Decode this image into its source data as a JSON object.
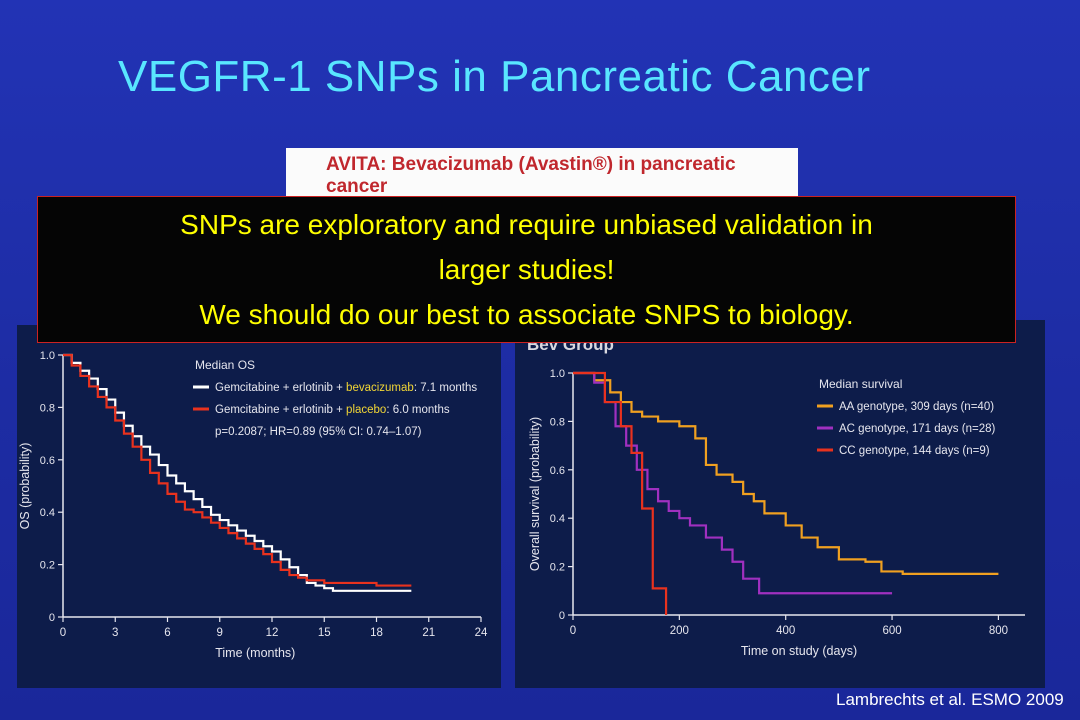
{
  "slide": {
    "title": "VEGFR-1 SNPs in Pancreatic Cancer",
    "trial_banner_line1": "AVITA: Bevacizumab (Avastin®) in pancreatic",
    "trial_banner_line2": "cancer",
    "callout_line1": "SNPs are exploratory and require unbiased validation in",
    "callout_line2": "larger studies!",
    "callout_line3": "We should do our best to associate SNPS to biology.",
    "right_panel_header": "Bev Group",
    "citation": "Lambrechts et al. ESMO 2009",
    "colors": {
      "background": "#1f2fa8",
      "title": "#59e6ff",
      "callout_text": "#ffff00",
      "callout_border": "#cc2222"
    }
  },
  "chart_data": [
    {
      "type": "line",
      "step": true,
      "xlabel": "Time (months)",
      "ylabel": "OS (probability)",
      "xlim": [
        0,
        24
      ],
      "ylim": [
        0,
        1.0
      ],
      "xticks": [
        "0",
        "3",
        "6",
        "9",
        "12",
        "15",
        "18",
        "21",
        "24"
      ],
      "yticks": [
        "0",
        "0.2",
        "0.4",
        "0.6",
        "0.8",
        "1.0"
      ],
      "legend_title": "Median OS",
      "annotation": "p=0.2087; HR=0.89 (95% CI: 0.74–1.07)",
      "series": [
        {
          "label_prefix": "Gemcitabine + erlotinib + ",
          "label_highlight": "bevacizumab",
          "label_suffix": ": 7.1 months",
          "color": "#ffffff",
          "highlight_color": "#f2d635",
          "x": [
            0,
            0.5,
            1,
            1.5,
            2,
            2.5,
            3,
            3.5,
            4,
            4.5,
            5,
            5.5,
            6,
            6.5,
            7,
            7.5,
            8,
            8.5,
            9,
            9.5,
            10,
            10.5,
            11,
            11.5,
            12,
            12.5,
            13,
            13.5,
            14,
            14.5,
            15,
            15.5,
            16,
            17,
            18,
            19,
            20
          ],
          "y": [
            1.0,
            0.97,
            0.94,
            0.91,
            0.87,
            0.83,
            0.78,
            0.73,
            0.69,
            0.65,
            0.62,
            0.58,
            0.54,
            0.51,
            0.48,
            0.45,
            0.42,
            0.39,
            0.37,
            0.35,
            0.33,
            0.31,
            0.29,
            0.27,
            0.25,
            0.22,
            0.19,
            0.16,
            0.13,
            0.12,
            0.11,
            0.1,
            0.1,
            0.1,
            0.1,
            0.1,
            0.1
          ]
        },
        {
          "label_prefix": "Gemcitabine + erlotinib + ",
          "label_highlight": "placebo",
          "label_suffix": ": 6.0 months",
          "color": "#e8321e",
          "highlight_color": "#f2d635",
          "x": [
            0,
            0.5,
            1,
            1.5,
            2,
            2.5,
            3,
            3.5,
            4,
            4.5,
            5,
            5.5,
            6,
            6.5,
            7,
            7.5,
            8,
            8.5,
            9,
            9.5,
            10,
            10.5,
            11,
            11.5,
            12,
            12.5,
            13,
            13.5,
            14,
            14.5,
            15,
            16,
            17,
            18,
            19,
            20
          ],
          "y": [
            1.0,
            0.96,
            0.92,
            0.88,
            0.84,
            0.8,
            0.75,
            0.7,
            0.65,
            0.6,
            0.55,
            0.51,
            0.47,
            0.44,
            0.41,
            0.4,
            0.38,
            0.36,
            0.34,
            0.32,
            0.3,
            0.28,
            0.26,
            0.24,
            0.21,
            0.18,
            0.16,
            0.15,
            0.14,
            0.14,
            0.13,
            0.13,
            0.13,
            0.12,
            0.12,
            0.12
          ]
        }
      ]
    },
    {
      "type": "line",
      "step": true,
      "xlabel": "Time on study (days)",
      "ylabel": "Overall survival (probability)",
      "xlim": [
        0,
        850
      ],
      "ylim": [
        0,
        1.0
      ],
      "xticks": [
        "0",
        "200",
        "400",
        "600",
        "800"
      ],
      "yticks": [
        "0",
        "0.2",
        "0.4",
        "0.6",
        "0.8",
        "1.0"
      ],
      "legend_title": "Median survival",
      "series": [
        {
          "label": "AA genotype, 309 days (n=40)",
          "color": "#f0a020",
          "x": [
            0,
            40,
            70,
            90,
            110,
            130,
            160,
            200,
            230,
            250,
            270,
            300,
            320,
            340,
            360,
            400,
            430,
            460,
            500,
            550,
            580,
            620,
            650,
            700,
            800
          ],
          "y": [
            1.0,
            0.97,
            0.92,
            0.88,
            0.84,
            0.82,
            0.8,
            0.78,
            0.73,
            0.62,
            0.58,
            0.55,
            0.5,
            0.47,
            0.42,
            0.37,
            0.32,
            0.28,
            0.23,
            0.22,
            0.18,
            0.17,
            0.17,
            0.17,
            0.17
          ]
        },
        {
          "label": "AC genotype, 171 days (n=28)",
          "color": "#a030c0",
          "x": [
            0,
            20,
            40,
            60,
            80,
            100,
            120,
            140,
            160,
            180,
            200,
            220,
            250,
            280,
            300,
            320,
            350,
            400,
            500,
            600
          ],
          "y": [
            1.0,
            1.0,
            0.96,
            0.88,
            0.78,
            0.7,
            0.6,
            0.52,
            0.47,
            0.43,
            0.4,
            0.37,
            0.32,
            0.27,
            0.22,
            0.15,
            0.09,
            0.09,
            0.09,
            0.09
          ]
        },
        {
          "label": "CC genotype, 144 days (n=9)",
          "color": "#e8321e",
          "x": [
            0,
            60,
            90,
            110,
            130,
            150,
            175
          ],
          "y": [
            1.0,
            0.88,
            0.78,
            0.67,
            0.44,
            0.11,
            0.0
          ]
        }
      ]
    }
  ]
}
